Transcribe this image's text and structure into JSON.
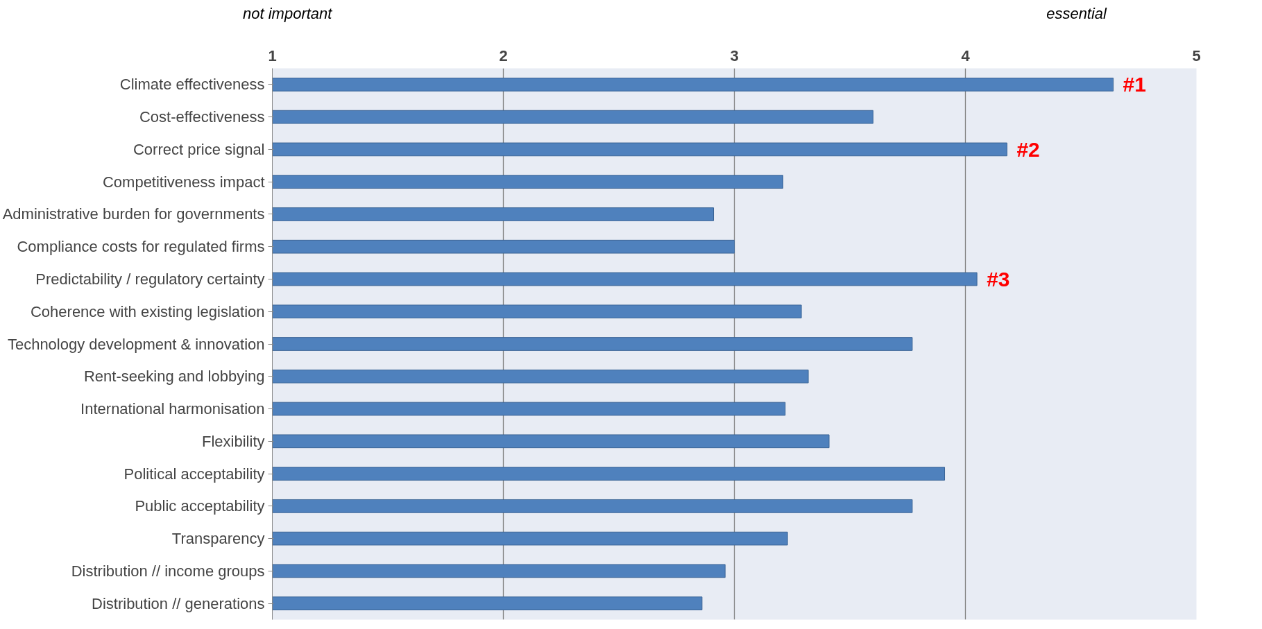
{
  "chart_data": {
    "type": "bar",
    "orientation": "horizontal",
    "categories": [
      "Climate effectiveness",
      "Cost-effectiveness",
      "Correct price signal",
      "Competitiveness impact",
      "Administrative burden for governments",
      "Compliance costs for regulated firms",
      "Predictability / regulatory certainty",
      "Coherence with existing legislation",
      "Technology development & innovation",
      "Rent-seeking and lobbying",
      "International harmonisation",
      "Flexibility",
      "Political acceptability",
      "Public acceptability",
      "Transparency",
      "Distribution // income groups",
      "Distribution // generations"
    ],
    "values": [
      4.64,
      3.6,
      4.18,
      3.21,
      2.91,
      3.0,
      4.05,
      3.29,
      3.77,
      3.32,
      3.22,
      3.41,
      3.91,
      3.77,
      3.23,
      2.96,
      2.86
    ],
    "color": "#4f81bd",
    "xlim": [
      1,
      5
    ],
    "xticks": [
      1,
      2,
      3,
      4,
      5
    ],
    "grid": "x",
    "annotations": [
      "not important",
      "essential",
      "#1",
      "#2",
      "#3"
    ]
  }
}
